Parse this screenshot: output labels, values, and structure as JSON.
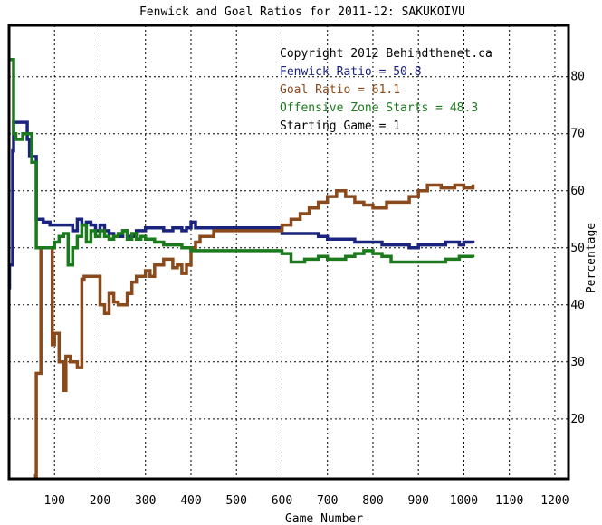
{
  "chart_data": {
    "type": "line",
    "title": "Fenwick and Goal Ratios for 2011-12: SAKUKOIVU",
    "xlabel": "Game Number",
    "ylabel": "Percentage",
    "xlim": [
      0,
      1230
    ],
    "ylim": [
      9.5,
      89
    ],
    "x_ticks": [
      100,
      200,
      300,
      400,
      500,
      600,
      700,
      800,
      900,
      1000,
      1100,
      1200
    ],
    "y_ticks": [
      20,
      30,
      40,
      50,
      60,
      70,
      80
    ],
    "grid": true,
    "legend_position": "top-right",
    "annotations": [
      {
        "text": "Copyright 2012 Behindthenet.ca",
        "color": "#000000"
      },
      {
        "text": "Fenwick Ratio = 50.8",
        "color": "#1a237e"
      },
      {
        "text": "Goal Ratio = 61.1",
        "color": "#8b4a1c"
      },
      {
        "text": "Offensive Zone Starts = 48.3",
        "color": "#1b7a1b"
      },
      {
        "text": "Starting Game = 1",
        "color": "#000000"
      }
    ],
    "series": [
      {
        "color": "#1a237e",
        "x": [
          0,
          1,
          8,
          10,
          20,
          40,
          45,
          60,
          65,
          75,
          80,
          90,
          140,
          150,
          160,
          170,
          180,
          190,
          200,
          210,
          220,
          230,
          250,
          260,
          280,
          300,
          320,
          340,
          360,
          380,
          390,
          400,
          410,
          430,
          450,
          480,
          500,
          520,
          550,
          570,
          590,
          600,
          620,
          650,
          680,
          700,
          720,
          740,
          760,
          790,
          820,
          850,
          880,
          900,
          930,
          960,
          990,
          1000,
          1020
        ],
        "y": [
          43,
          47,
          67,
          72,
          72,
          69,
          66,
          55,
          55,
          54.5,
          54.5,
          54,
          53,
          55,
          54,
          54.5,
          54,
          53,
          54,
          53,
          52.5,
          52,
          53,
          52,
          53,
          53.5,
          53.5,
          53,
          53.5,
          53,
          53.5,
          54.5,
          53.5,
          53.5,
          53.5,
          53.5,
          53.5,
          53.5,
          53.5,
          53.5,
          53.5,
          52.5,
          52.5,
          52.5,
          52,
          51.5,
          51.5,
          51.5,
          51,
          51,
          50.5,
          50.5,
          50,
          50.5,
          50.5,
          51,
          50.5,
          51,
          50.8
        ]
      },
      {
        "color": "#8b4a1c",
        "x": [
          55,
          60,
          70,
          80,
          85,
          95,
          100,
          110,
          120,
          125,
          135,
          150,
          160,
          165,
          175,
          190,
          200,
          210,
          220,
          230,
          240,
          260,
          270,
          280,
          300,
          310,
          320,
          340,
          350,
          360,
          370,
          380,
          390,
          400,
          410,
          420,
          450,
          500,
          560,
          580,
          600,
          620,
          640,
          660,
          680,
          700,
          720,
          740,
          760,
          780,
          800,
          830,
          860,
          880,
          900,
          920,
          950,
          980,
          1000,
          1020
        ],
        "y": [
          10,
          28,
          50,
          50,
          50,
          33,
          35,
          30,
          25,
          31,
          30,
          29,
          44.5,
          45,
          45,
          45,
          40,
          38.5,
          42,
          40.5,
          40,
          42,
          44,
          45,
          46,
          45,
          47,
          48,
          48,
          46.5,
          47,
          45.5,
          47,
          50,
          51,
          52,
          53,
          53,
          53,
          53,
          54,
          55,
          56,
          57,
          58,
          59,
          60,
          59,
          58,
          57.5,
          57,
          58,
          58,
          59,
          60,
          61,
          60.5,
          61,
          60.5,
          61.1
        ]
      },
      {
        "color": "#1b7a1b",
        "x": [
          0,
          5,
          10,
          15,
          20,
          30,
          40,
          50,
          60,
          70,
          80,
          90,
          100,
          110,
          120,
          130,
          140,
          150,
          160,
          170,
          180,
          190,
          200,
          210,
          220,
          230,
          240,
          250,
          260,
          270,
          280,
          290,
          300,
          320,
          340,
          360,
          380,
          400,
          420,
          440,
          500,
          550,
          580,
          600,
          620,
          650,
          680,
          700,
          720,
          740,
          760,
          780,
          800,
          820,
          840,
          860,
          880,
          900,
          930,
          960,
          990,
          1020
        ],
        "y": [
          83,
          83,
          70,
          69,
          69,
          70,
          70,
          65,
          50,
          50,
          50,
          50,
          51,
          52,
          52.5,
          47,
          50,
          52,
          54,
          51,
          53,
          52,
          53,
          52,
          51.5,
          52,
          52.5,
          53,
          51.5,
          52.5,
          51.5,
          52,
          51.5,
          51,
          50.5,
          50.5,
          50,
          49.5,
          49.5,
          49.5,
          49.5,
          49.5,
          49.5,
          49,
          47.5,
          48,
          48.5,
          48,
          48,
          48.5,
          49,
          49.5,
          49,
          48.5,
          47.5,
          47.5,
          47.5,
          47.5,
          47.5,
          48,
          48.5,
          48.3
        ]
      }
    ]
  }
}
